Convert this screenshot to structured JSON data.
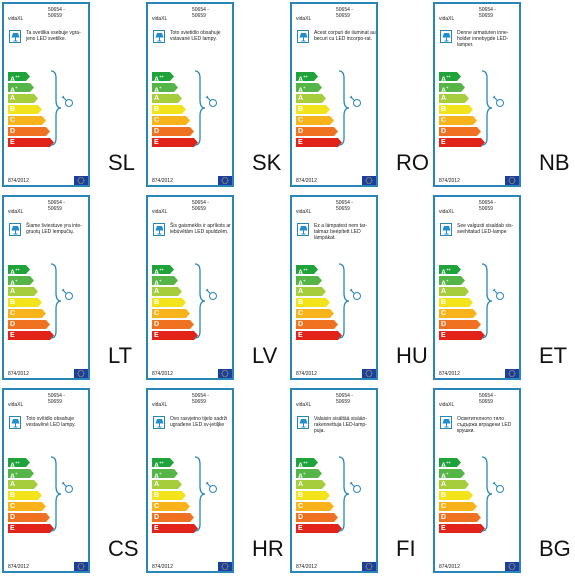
{
  "brand": "vidaXL",
  "models": [
    "50654 -",
    "50659"
  ],
  "regulation": "874/2012",
  "ratings": [
    {
      "letter": "A",
      "sup": "++",
      "color": "#21a33b"
    },
    {
      "letter": "A",
      "sup": "+",
      "color": "#55b547"
    },
    {
      "letter": "A",
      "sup": "",
      "color": "#a6cd3b"
    },
    {
      "letter": "B",
      "sup": "",
      "color": "#f2e31b"
    },
    {
      "letter": "C",
      "sup": "",
      "color": "#f8b31a"
    },
    {
      "letter": "D",
      "sup": "",
      "color": "#f0711f"
    },
    {
      "letter": "E",
      "sup": "",
      "color": "#e2231a"
    }
  ],
  "labels": [
    {
      "code": "SL",
      "text": "Ta svetilka vsebuje vgra-jeno LED svetilke."
    },
    {
      "code": "SK",
      "text": "Toto svietidlo obsahuje vstavané LED lampy."
    },
    {
      "code": "RO",
      "text": "Acest corpuri de iluminat au becuri cu LED incorpo-rat."
    },
    {
      "code": "NB",
      "text": "Denne armaturen inne-holder innebygde LED-lamper."
    },
    {
      "code": "LT",
      "text": "Šiame šviestuve yra inte-gruotų LED lempučių."
    },
    {
      "code": "LV",
      "text": "Šis gaismeklis ir aprīkots ar iebūvētām LED spuldzēm."
    },
    {
      "code": "HU",
      "text": "Ez a lámpatest nem tar-talmaz beépített LED lámpákat."
    },
    {
      "code": "ET",
      "text": "See valgusti sisaldab sis-seehitatud LED-lampe"
    },
    {
      "code": "CS",
      "text": "Toto svítidlo obsahuje vestavěné LED lampy."
    },
    {
      "code": "HR",
      "text": "Ovo rasvjetno tijelo sadrži ugrađene LED sv-jetiljke"
    },
    {
      "code": "FI",
      "text": "Valaisin sisältää sisään-rakennettuja LED-lamp-puja."
    },
    {
      "code": "BG",
      "text": "Осветителното тяло съдържа вградени LED крушки."
    }
  ]
}
